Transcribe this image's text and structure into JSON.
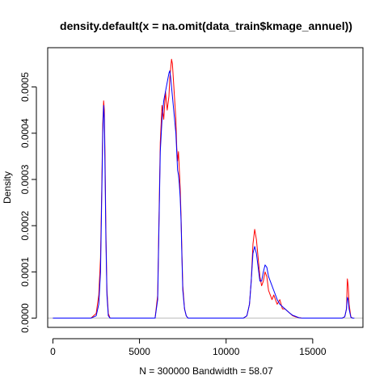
{
  "chart_data": {
    "type": "line",
    "title": "density.default(x = na.omit(data_train$kmage_annuel))",
    "xlabel": "N = 300000   Bandwidth = 58.07",
    "ylabel": "Density",
    "xlim": [
      -300,
      17900
    ],
    "ylim": [
      -2e-05,
      0.000585
    ],
    "grid": false,
    "x_ticks": [
      0,
      5000,
      10000,
      15000
    ],
    "x_tick_labels": [
      "0",
      "5000",
      "10000",
      "15000"
    ],
    "y_ticks": [
      0,
      0.0001,
      0.0002,
      0.0003,
      0.0004,
      0.0005
    ],
    "y_tick_labels": [
      "0.0000",
      "0.0001",
      "0.0002",
      "0.0003",
      "0.0004",
      "0.0005"
    ],
    "baseline_color": "#BEBEBE",
    "series": [
      {
        "color": "#FF0000",
        "x": [
          0,
          2200,
          2500,
          2650,
          2750,
          2820,
          2880,
          2930,
          2970,
          3010,
          3060,
          3120,
          3200,
          3300,
          3500,
          5900,
          6050,
          6200,
          6300,
          6400,
          6500,
          6600,
          6700,
          6750,
          6800,
          6850,
          6900,
          6950,
          7000,
          7050,
          7100,
          7150,
          7200,
          7250,
          7300,
          7350,
          7400,
          7450,
          7500,
          7600,
          7700,
          7800,
          7900,
          8000,
          11000,
          11200,
          11350,
          11450,
          11550,
          11650,
          11750,
          11850,
          11950,
          12050,
          12150,
          12250,
          12350,
          12450,
          12550,
          12650,
          12750,
          12850,
          12950,
          13100,
          13250,
          13400,
          13550,
          13700,
          13850,
          14000,
          14200,
          14400,
          14600,
          16700,
          16850,
          16950,
          17000,
          17050,
          17100,
          17200,
          17300,
          17400
        ],
        "y": [
          0,
          0,
          1e-05,
          5e-05,
          0.00013,
          0.00028,
          0.00042,
          0.00047,
          0.00045,
          0.00035,
          0.00019,
          6e-05,
          1e-05,
          0,
          0,
          0,
          5e-05,
          0.00038,
          0.00046,
          0.00043,
          0.00049,
          0.00045,
          0.00048,
          0.00052,
          0.00054,
          0.00056,
          0.00055,
          0.00052,
          0.00049,
          0.00046,
          0.00043,
          0.00037,
          0.00034,
          0.00036,
          0.00032,
          0.00028,
          0.00022,
          0.00014,
          7e-05,
          2e-05,
          5e-06,
          0,
          0,
          0,
          0,
          5e-06,
          3e-05,
          8e-05,
          0.00016,
          0.000192,
          0.00017,
          0.00013,
          9e-05,
          7e-05,
          8e-05,
          0.0001,
          9e-05,
          6e-05,
          5e-05,
          4e-05,
          5e-05,
          4e-05,
          3e-05,
          4e-05,
          2e-05,
          2e-05,
          1.5e-05,
          1e-05,
          5e-06,
          3e-06,
          1e-06,
          0,
          0,
          0,
          3e-06,
          2e-05,
          8.5e-05,
          7e-05,
          3e-05,
          3e-06,
          0,
          0
        ]
      },
      {
        "color": "#0000FF",
        "x": [
          0,
          2200,
          2500,
          2650,
          2750,
          2820,
          2880,
          2930,
          2970,
          3010,
          3060,
          3120,
          3200,
          3300,
          3500,
          5900,
          6050,
          6200,
          6300,
          6400,
          6500,
          6600,
          6700,
          6750,
          6800,
          6850,
          6900,
          6950,
          7000,
          7050,
          7100,
          7150,
          7200,
          7250,
          7300,
          7350,
          7400,
          7450,
          7500,
          7600,
          7700,
          7800,
          7900,
          8000,
          11000,
          11200,
          11350,
          11450,
          11550,
          11650,
          11750,
          11850,
          11950,
          12050,
          12150,
          12250,
          12350,
          12450,
          12550,
          12650,
          12750,
          12850,
          12950,
          13100,
          13250,
          13400,
          13550,
          13700,
          13850,
          14000,
          14200,
          14400,
          14600,
          16700,
          16850,
          16950,
          17000,
          17050,
          17100,
          17200,
          17300,
          17400
        ],
        "y": [
          0,
          0,
          5e-06,
          3e-05,
          0.0001,
          0.00026,
          0.0004,
          0.00046,
          0.00043,
          0.00032,
          0.00017,
          5e-05,
          5e-06,
          0,
          0,
          0,
          4e-05,
          0.00036,
          0.00043,
          0.00047,
          0.00049,
          0.00051,
          0.00053,
          0.000535,
          0.00052,
          0.0005,
          0.00048,
          0.00046,
          0.00044,
          0.00042,
          0.0004,
          0.00036,
          0.00032,
          0.00031,
          0.00029,
          0.00026,
          0.00021,
          0.00013,
          6e-05,
          2e-05,
          5e-06,
          0,
          0,
          0,
          0,
          5e-06,
          3e-05,
          8e-05,
          0.00014,
          0.000155,
          0.00014,
          0.00011,
          8e-05,
          8e-05,
          0.0001,
          0.000115,
          0.00011,
          9e-05,
          8e-05,
          7e-05,
          6e-05,
          5e-05,
          4e-05,
          3e-05,
          2.5e-05,
          2e-05,
          1.5e-05,
          1e-05,
          6e-06,
          4e-06,
          1e-06,
          0,
          0,
          0,
          3e-06,
          2e-05,
          4.5e-05,
          4e-05,
          2e-05,
          2e-06,
          0,
          0
        ]
      }
    ]
  }
}
